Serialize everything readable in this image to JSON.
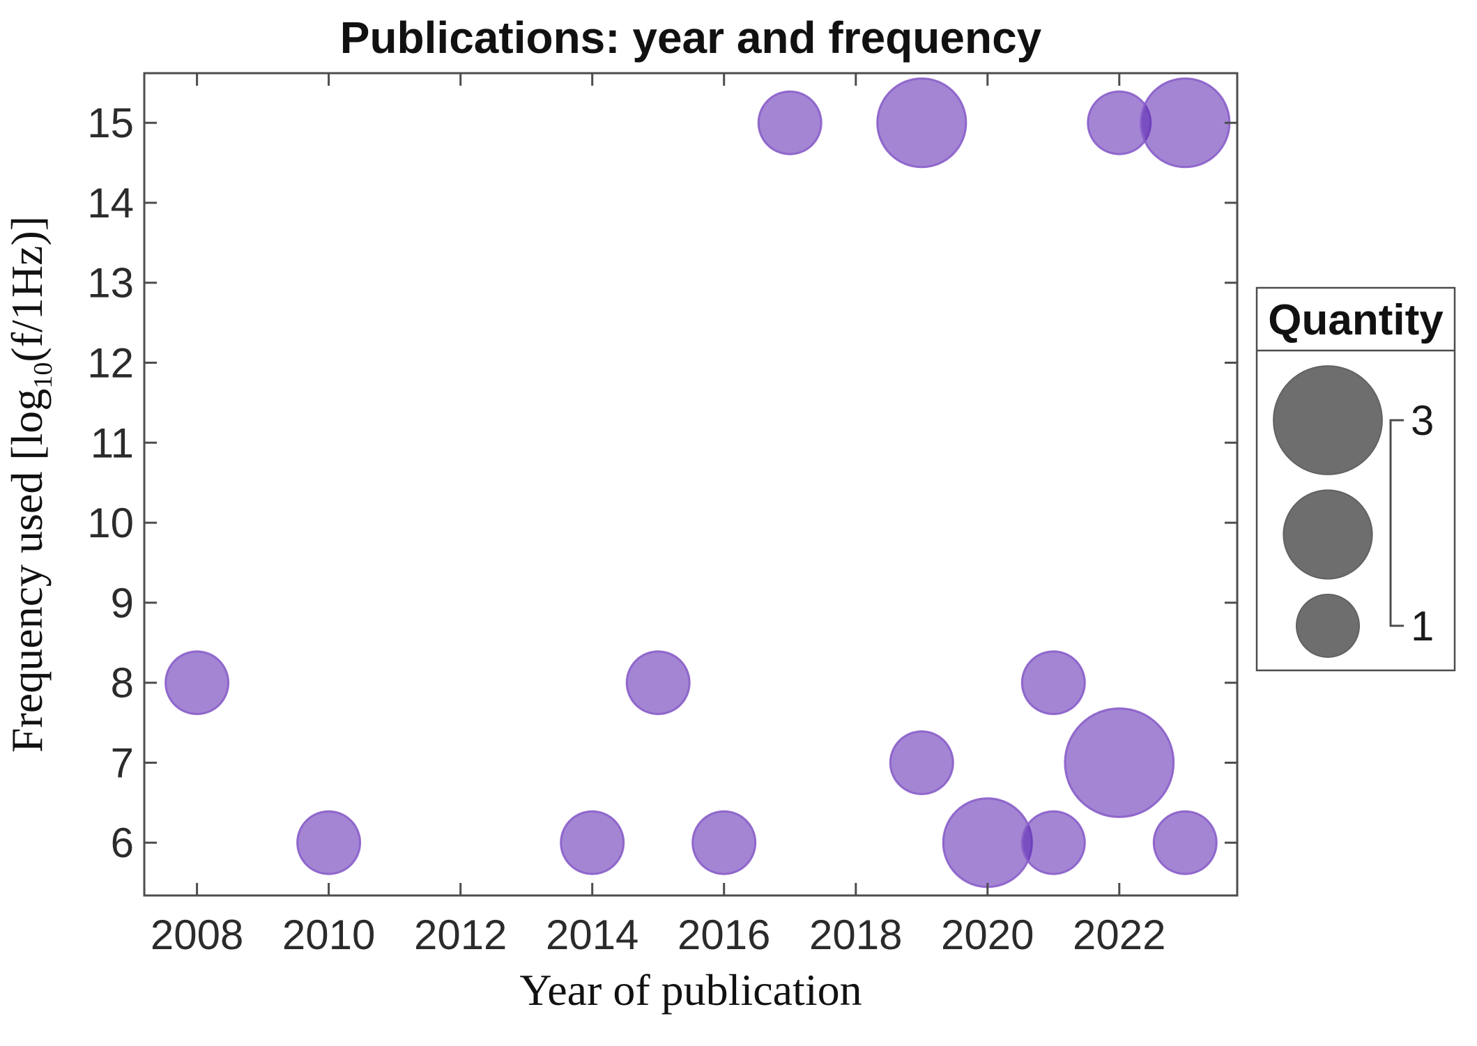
{
  "figure": {
    "title": "Publications: year and frequency",
    "xlabel": "Year of publication",
    "ylabel_prefix": "Frequency used [log",
    "ylabel_sub": "10",
    "ylabel_suffix": "(f/1Hz)]"
  },
  "chart_data": {
    "type": "scatter",
    "subtype": "bubble",
    "title": "Publications: year and frequency",
    "xlabel": "Year of publication",
    "ylabel": "Frequency used [log10(f/1Hz)]",
    "x_ticks": [
      2008,
      2010,
      2012,
      2014,
      2016,
      2018,
      2020,
      2022
    ],
    "y_ticks": [
      6,
      7,
      8,
      9,
      10,
      11,
      12,
      13,
      14,
      15
    ],
    "xlim": [
      2007.2,
      2023.79
    ],
    "ylim": [
      5.34,
      15.62
    ],
    "grid": false,
    "points": [
      {
        "year": 2008,
        "frequency": 8,
        "quantity": 1
      },
      {
        "year": 2010,
        "frequency": 6,
        "quantity": 1
      },
      {
        "year": 2014,
        "frequency": 6,
        "quantity": 1
      },
      {
        "year": 2015,
        "frequency": 8,
        "quantity": 1
      },
      {
        "year": 2016,
        "frequency": 6,
        "quantity": 1
      },
      {
        "year": 2017,
        "frequency": 15,
        "quantity": 1
      },
      {
        "year": 2019,
        "frequency": 15,
        "quantity": 2
      },
      {
        "year": 2019,
        "frequency": 7,
        "quantity": 1
      },
      {
        "year": 2020,
        "frequency": 6,
        "quantity": 2
      },
      {
        "year": 2021,
        "frequency": 8,
        "quantity": 1
      },
      {
        "year": 2021,
        "frequency": 6,
        "quantity": 1
      },
      {
        "year": 2022,
        "frequency": 15,
        "quantity": 1
      },
      {
        "year": 2022,
        "frequency": 7,
        "quantity": 3
      },
      {
        "year": 2023,
        "frequency": 15,
        "quantity": 2
      },
      {
        "year": 2023,
        "frequency": 6,
        "quantity": 1
      }
    ],
    "size_legend": {
      "title": "Quantity",
      "position": "right",
      "bubble_values": [
        3,
        2,
        1
      ],
      "max_label": "3",
      "min_label": "1"
    },
    "colors": {
      "bubble_fill": "#5721b0",
      "bubble_fill_opacity": 0.55,
      "bubble_stroke": "#8a5ec9",
      "legend_bubble_fill": "#6e6e6e",
      "legend_bubble_stroke": "#616161",
      "axis": "#4d4d4d",
      "text": "#1a1a1a"
    }
  }
}
